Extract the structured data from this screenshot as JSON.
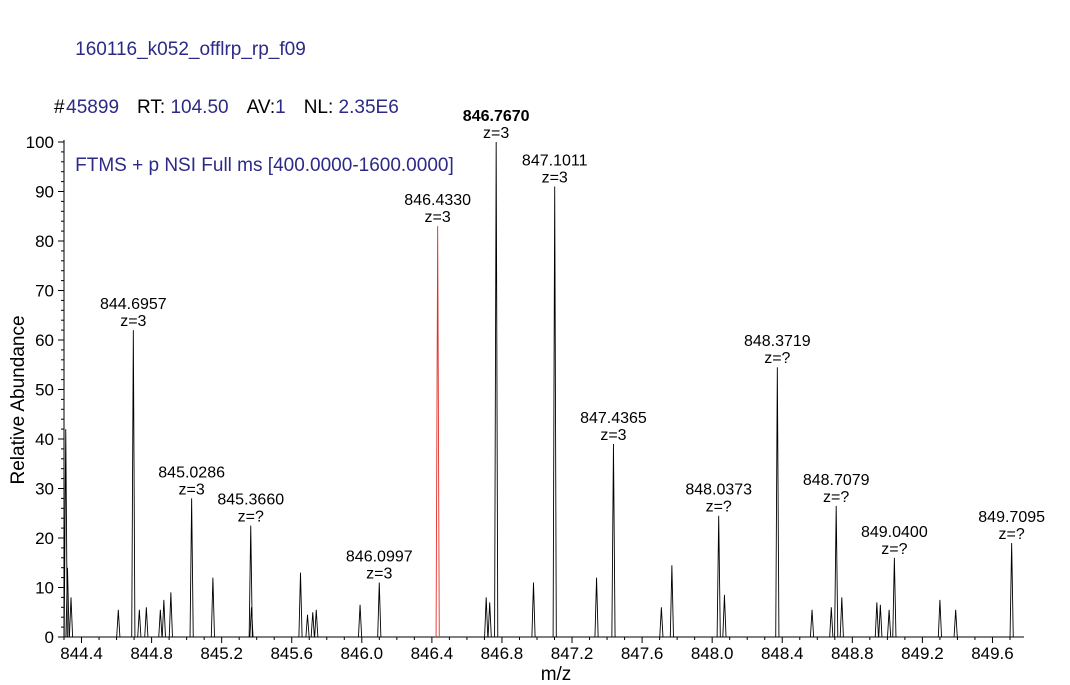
{
  "header": {
    "filename": "160116_k052_offlrp_rp_f09",
    "scan_label": "#",
    "scan_value": "45899",
    "rt_label": "RT:",
    "rt_value": "104.50",
    "av_label": "AV:",
    "av_value": "1",
    "nl_label": "NL:",
    "nl_value": "2.35E6",
    "filter": "FTMS + p NSI Full ms [400.0000-1600.0000]"
  },
  "colors": {
    "header_text": "#2c2a86",
    "peak": "#000000",
    "highlight_peak": "#e0302a",
    "axis": "#000000"
  },
  "chart_data": {
    "type": "line",
    "xlabel": "m/z",
    "ylabel": "Relative Abundance",
    "xlim": [
      844.3,
      849.78
    ],
    "ylim": [
      0,
      100
    ],
    "x_ticks": [
      "844.4",
      "844.8",
      "845.2",
      "845.6",
      "846.0",
      "846.4",
      "846.8",
      "847.2",
      "847.6",
      "848.0",
      "848.4",
      "848.8",
      "849.2",
      "849.6"
    ],
    "x_tick_values": [
      844.4,
      844.8,
      845.2,
      845.6,
      846.0,
      846.4,
      846.8,
      847.2,
      847.6,
      848.0,
      848.4,
      848.8,
      849.2,
      849.6
    ],
    "y_ticks": [
      "0",
      "10",
      "20",
      "30",
      "40",
      "50",
      "60",
      "70",
      "80",
      "90",
      "100"
    ],
    "y_tick_values": [
      0,
      10,
      20,
      30,
      40,
      50,
      60,
      70,
      80,
      90,
      100
    ],
    "grid": false,
    "peaks": [
      {
        "mz": 844.31,
        "y": 42
      },
      {
        "mz": 844.32,
        "y": 14
      },
      {
        "mz": 844.34,
        "y": 8
      },
      {
        "mz": 844.61,
        "y": 5.5
      },
      {
        "mz": 844.6957,
        "y": 62,
        "label": "844.6957",
        "charge": "z=3"
      },
      {
        "mz": 844.73,
        "y": 5.5
      },
      {
        "mz": 844.77,
        "y": 6
      },
      {
        "mz": 844.85,
        "y": 5.5
      },
      {
        "mz": 844.87,
        "y": 7.5
      },
      {
        "mz": 844.91,
        "y": 9
      },
      {
        "mz": 845.0286,
        "y": 28,
        "label": "845.0286",
        "charge": "z=3"
      },
      {
        "mz": 845.15,
        "y": 12
      },
      {
        "mz": 845.366,
        "y": 22.5,
        "label": "845.3660",
        "charge": "z=?"
      },
      {
        "mz": 845.37,
        "y": 6
      },
      {
        "mz": 845.65,
        "y": 13
      },
      {
        "mz": 845.69,
        "y": 4.5
      },
      {
        "mz": 845.72,
        "y": 5
      },
      {
        "mz": 845.74,
        "y": 5.5
      },
      {
        "mz": 845.99,
        "y": 6.5
      },
      {
        "mz": 846.0997,
        "y": 11,
        "label": "846.0997",
        "charge": "z=3"
      },
      {
        "mz": 846.433,
        "y": 83,
        "label": "846.4330",
        "charge": "z=3",
        "highlight": true
      },
      {
        "mz": 846.71,
        "y": 8
      },
      {
        "mz": 846.73,
        "y": 7
      },
      {
        "mz": 846.767,
        "y": 100,
        "label": "846.7670",
        "charge": "z=3",
        "bold": true
      },
      {
        "mz": 846.98,
        "y": 11
      },
      {
        "mz": 847.1011,
        "y": 91,
        "label": "847.1011",
        "charge": "z=3"
      },
      {
        "mz": 847.34,
        "y": 12
      },
      {
        "mz": 847.4365,
        "y": 39,
        "label": "847.4365",
        "charge": "z=3"
      },
      {
        "mz": 847.71,
        "y": 6
      },
      {
        "mz": 847.77,
        "y": 14.5
      },
      {
        "mz": 848.0373,
        "y": 24.5,
        "label": "848.0373",
        "charge": "z=?"
      },
      {
        "mz": 848.07,
        "y": 8.5
      },
      {
        "mz": 848.3719,
        "y": 54.5,
        "label": "848.3719",
        "charge": "z=?"
      },
      {
        "mz": 848.57,
        "y": 5.5
      },
      {
        "mz": 848.68,
        "y": 6
      },
      {
        "mz": 848.7079,
        "y": 26.5,
        "label": "848.7079",
        "charge": "z=?"
      },
      {
        "mz": 848.74,
        "y": 8
      },
      {
        "mz": 848.94,
        "y": 7
      },
      {
        "mz": 848.96,
        "y": 6.5
      },
      {
        "mz": 849.01,
        "y": 5.5
      },
      {
        "mz": 849.04,
        "y": 16,
        "label": "849.0400",
        "charge": "z=?"
      },
      {
        "mz": 849.3,
        "y": 7.5
      },
      {
        "mz": 849.39,
        "y": 5.5
      },
      {
        "mz": 849.7095,
        "y": 19,
        "label": "849.7095",
        "charge": "z=?"
      }
    ]
  }
}
